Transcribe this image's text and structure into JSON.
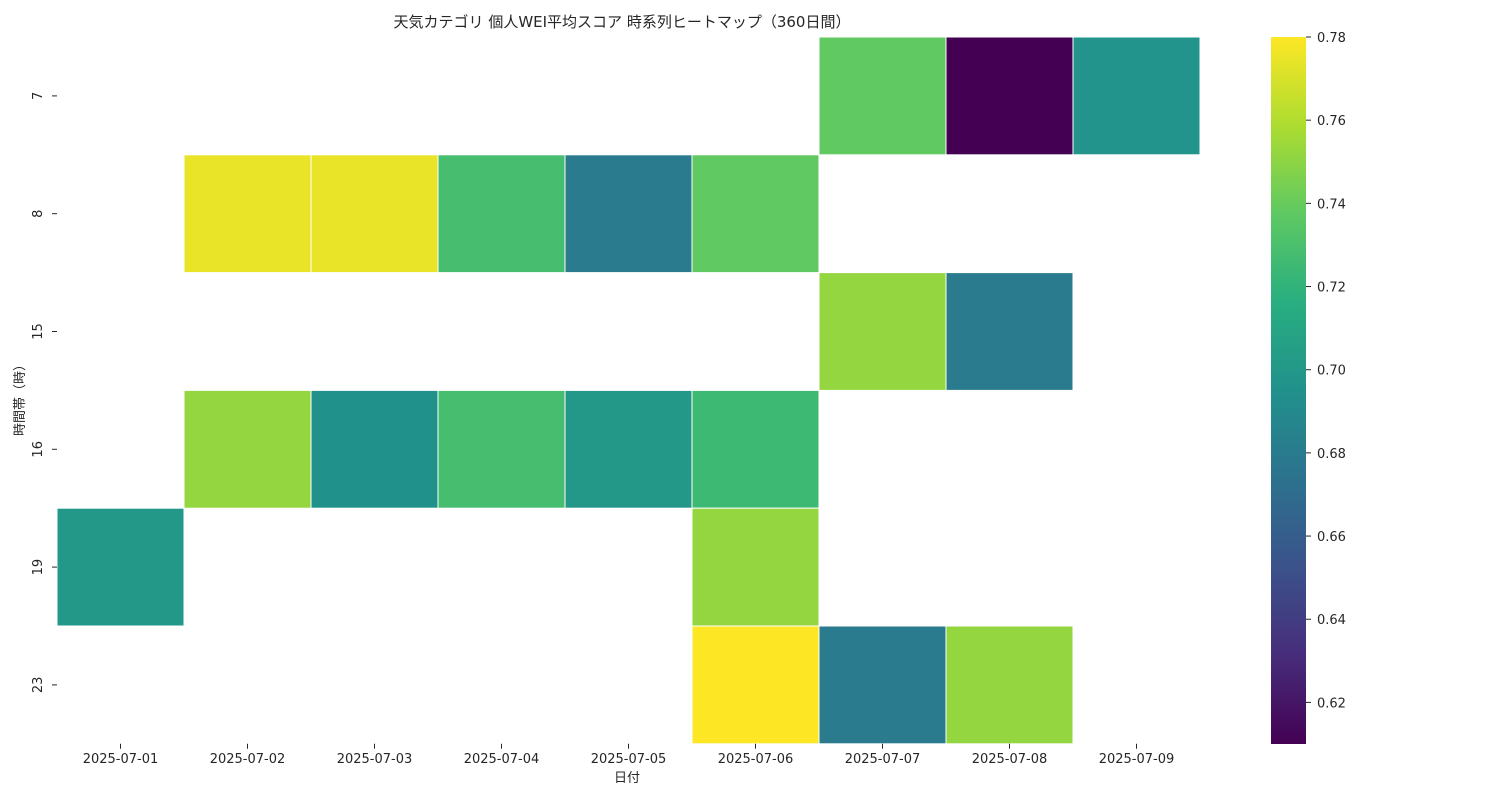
{
  "chart_data": {
    "type": "heatmap",
    "title": "天気カテゴリ 個人WEI平均スコア 時系列ヒートマップ（360日間）",
    "xlabel": "日付",
    "ylabel": "時間帯（時）",
    "x": [
      "2025-07-01",
      "2025-07-02",
      "2025-07-03",
      "2025-07-04",
      "2025-07-05",
      "2025-07-06",
      "2025-07-07",
      "2025-07-08",
      "2025-07-09"
    ],
    "y": [
      "7",
      "8",
      "15",
      "16",
      "19",
      "23"
    ],
    "values": [
      [
        null,
        null,
        null,
        null,
        null,
        null,
        0.738,
        0.61,
        0.697
      ],
      [
        null,
        0.775,
        0.775,
        0.728,
        0.68,
        0.738,
        null,
        null,
        null
      ],
      [
        null,
        null,
        null,
        null,
        null,
        null,
        0.752,
        0.68,
        null
      ],
      [
        null,
        0.752,
        0.695,
        0.728,
        0.7,
        0.725,
        null,
        null,
        null
      ],
      [
        0.7,
        null,
        null,
        null,
        null,
        0.752,
        null,
        null,
        null
      ],
      [
        null,
        null,
        null,
        null,
        null,
        0.78,
        0.68,
        0.752,
        null
      ]
    ],
    "colorscale": "viridis",
    "vmin": 0.61,
    "vmax": 0.78,
    "colorbar_ticks": [
      "0.62",
      "0.64",
      "0.66",
      "0.68",
      "0.70",
      "0.72",
      "0.74",
      "0.76",
      "0.78"
    ],
    "grid": false,
    "legend": "colorbar-right"
  }
}
